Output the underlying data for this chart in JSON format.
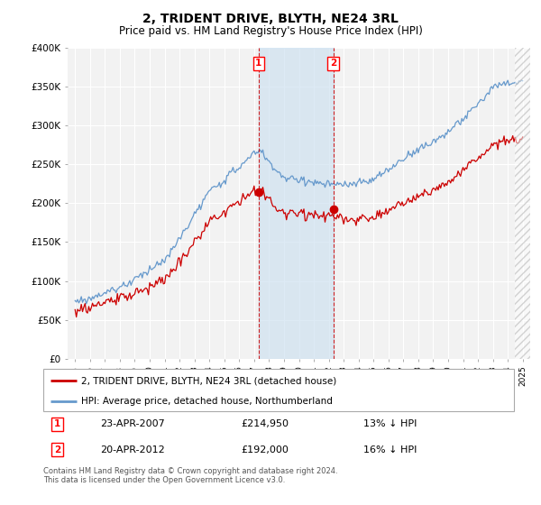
{
  "title": "2, TRIDENT DRIVE, BLYTH, NE24 3RL",
  "subtitle": "Price paid vs. HM Land Registry's House Price Index (HPI)",
  "ylim": [
    0,
    400000
  ],
  "yticks": [
    0,
    50000,
    100000,
    150000,
    200000,
    250000,
    300000,
    350000,
    400000
  ],
  "ytick_labels": [
    "£0",
    "£50K",
    "£100K",
    "£150K",
    "£200K",
    "£250K",
    "£300K",
    "£350K",
    "£400K"
  ],
  "background_color": "#ffffff",
  "plot_bg_color": "#f2f2f2",
  "grid_color": "#ffffff",
  "hpi_color": "#6699cc",
  "price_color": "#cc0000",
  "sale1_date": "23-APR-2007",
  "sale1_price": 214950,
  "sale1_note": "13% ↓ HPI",
  "sale2_date": "20-APR-2012",
  "sale2_price": 192000,
  "sale2_note": "16% ↓ HPI",
  "legend_line1": "2, TRIDENT DRIVE, BLYTH, NE24 3RL (detached house)",
  "legend_line2": "HPI: Average price, detached house, Northumberland",
  "footer": "Contains HM Land Registry data © Crown copyright and database right 2024.\nThis data is licensed under the Open Government Licence v3.0.",
  "shade_x1": 2007.3,
  "shade_x2": 2012.3,
  "xlim_left": 1994.5,
  "xlim_right": 2025.5
}
